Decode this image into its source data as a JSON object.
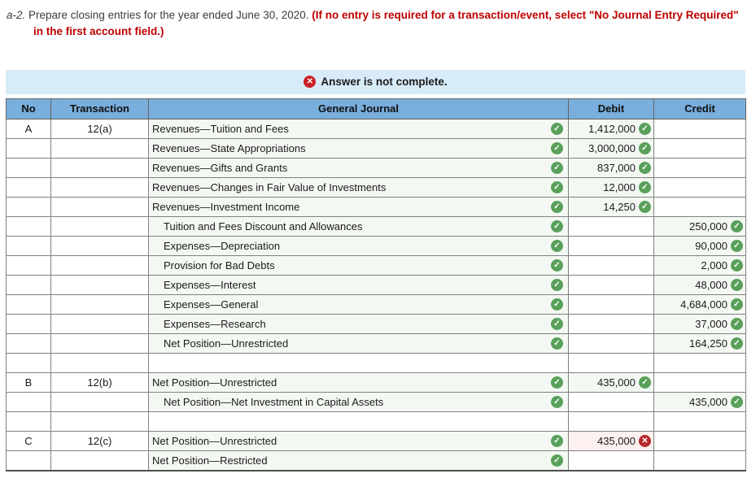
{
  "instruction": {
    "question_number": "a-2.",
    "text_main": " Prepare closing entries for the year ended June 30, 2020. ",
    "text_warning": "(If no entry is required for a transaction/event, select \"No Journal Entry Required\" in the first account field.)"
  },
  "banner": {
    "icon": "x-circle",
    "text": "Answer is not complete."
  },
  "table": {
    "headers": {
      "no": "No",
      "transaction": "Transaction",
      "journal": "General Journal",
      "debit": "Debit",
      "credit": "Credit"
    },
    "rows": [
      {
        "no": "A",
        "transaction": "12(a)",
        "account": "Revenues—Tuition and Fees",
        "indent": false,
        "account_status": "correct",
        "debit": "1,412,000",
        "debit_status": "correct",
        "credit": "",
        "credit_status": "none"
      },
      {
        "no": "",
        "transaction": "",
        "account": "Revenues—State Appropriations",
        "indent": false,
        "account_status": "correct",
        "debit": "3,000,000",
        "debit_status": "correct",
        "credit": "",
        "credit_status": "none"
      },
      {
        "no": "",
        "transaction": "",
        "account": "Revenues—Gifts and Grants",
        "indent": false,
        "account_status": "correct",
        "debit": "837,000",
        "debit_status": "correct",
        "credit": "",
        "credit_status": "none"
      },
      {
        "no": "",
        "transaction": "",
        "account": "Revenues—Changes in Fair Value of Investments",
        "indent": false,
        "account_status": "correct",
        "debit": "12,000",
        "debit_status": "correct",
        "credit": "",
        "credit_status": "none"
      },
      {
        "no": "",
        "transaction": "",
        "account": "Revenues—Investment Income",
        "indent": false,
        "account_status": "correct",
        "debit": "14,250",
        "debit_status": "correct",
        "credit": "",
        "credit_status": "none"
      },
      {
        "no": "",
        "transaction": "",
        "account": "Tuition and Fees Discount and Allowances",
        "indent": true,
        "account_status": "correct",
        "debit": "",
        "debit_status": "none",
        "credit": "250,000",
        "credit_status": "correct"
      },
      {
        "no": "",
        "transaction": "",
        "account": "Expenses—Depreciation",
        "indent": true,
        "account_status": "correct",
        "debit": "",
        "debit_status": "none",
        "credit": "90,000",
        "credit_status": "correct"
      },
      {
        "no": "",
        "transaction": "",
        "account": "Provision for Bad Debts",
        "indent": true,
        "account_status": "correct",
        "debit": "",
        "debit_status": "none",
        "credit": "2,000",
        "credit_status": "correct"
      },
      {
        "no": "",
        "transaction": "",
        "account": "Expenses—Interest",
        "indent": true,
        "account_status": "correct",
        "debit": "",
        "debit_status": "none",
        "credit": "48,000",
        "credit_status": "correct"
      },
      {
        "no": "",
        "transaction": "",
        "account": "Expenses—General",
        "indent": true,
        "account_status": "correct",
        "debit": "",
        "debit_status": "none",
        "credit": "4,684,000",
        "credit_status": "correct"
      },
      {
        "no": "",
        "transaction": "",
        "account": "Expenses—Research",
        "indent": true,
        "account_status": "correct",
        "debit": "",
        "debit_status": "none",
        "credit": "37,000",
        "credit_status": "correct"
      },
      {
        "no": "",
        "transaction": "",
        "account": "Net Position—Unrestricted",
        "indent": true,
        "account_status": "correct",
        "debit": "",
        "debit_status": "none",
        "credit": "164,250",
        "credit_status": "correct"
      },
      {
        "type": "spacer"
      },
      {
        "no": "B",
        "transaction": "12(b)",
        "account": "Net Position—Unrestricted",
        "indent": false,
        "account_status": "correct",
        "debit": "435,000",
        "debit_status": "correct",
        "credit": "",
        "credit_status": "none"
      },
      {
        "no": "",
        "transaction": "",
        "account": "Net Position—Net Investment in Capital Assets",
        "indent": true,
        "account_status": "correct",
        "debit": "",
        "debit_status": "none",
        "credit": "435,000",
        "credit_status": "correct"
      },
      {
        "type": "spacer"
      },
      {
        "no": "C",
        "transaction": "12(c)",
        "account": "Net Position—Unrestricted",
        "indent": false,
        "account_status": "correct",
        "debit": "435,000",
        "debit_status": "wrong",
        "credit": "",
        "credit_status": "none"
      },
      {
        "no": "",
        "transaction": "",
        "account": "Net Position—Restricted",
        "indent": false,
        "account_status": "correct",
        "debit": "",
        "debit_status": "none",
        "credit": "",
        "credit_status": "none"
      }
    ]
  },
  "icons": {
    "correct": "check-circle-green",
    "wrong": "x-circle-red",
    "banner_error": "x-circle-red"
  },
  "colors": {
    "header_bg": "#79aedd",
    "banner_bg": "#d8ebf8",
    "cell_tint": "#f4f8f3",
    "error_cell_bg": "#fcf1ee",
    "correct_green": "#59a05a",
    "error_red": "#b5282c",
    "warning_text_red": "#c00000"
  }
}
